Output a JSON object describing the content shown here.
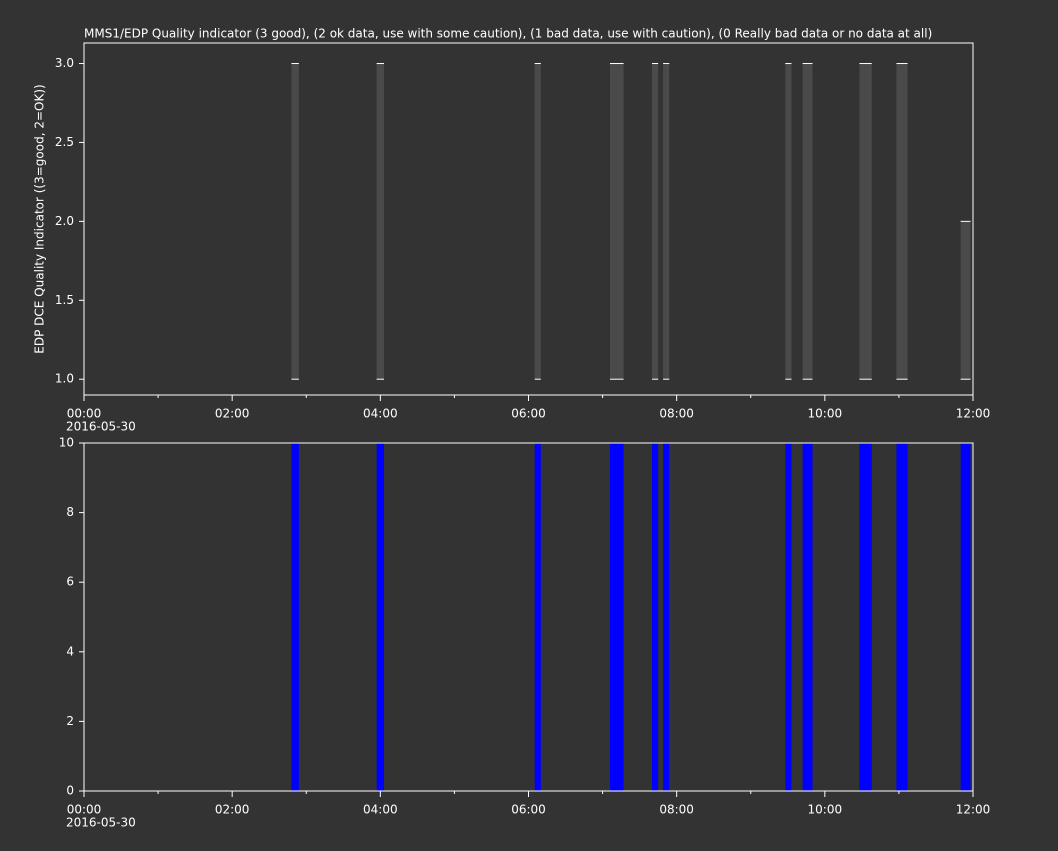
{
  "chart_data": [
    {
      "type": "range",
      "title": "MMS1/EDP  Quality indicator (3 good), (2 ok data, use with some caution), (1 bad data, use with caution), (0 Really bad data or no data at all)",
      "ylabel": "EDP DCE Quality Indicator ((3=good, 2=OK))",
      "x_date": "2016-05-30",
      "xlim": [
        "00:00",
        "12:00"
      ],
      "xticks": [
        "00:00",
        "02:00",
        "04:00",
        "06:00",
        "08:00",
        "10:00",
        "12:00"
      ],
      "ylim": [
        0.9,
        3.13
      ],
      "yticks": [
        {
          "value": 1,
          "label": "1.0"
        },
        {
          "value": 1.5,
          "label": "1.5"
        },
        {
          "value": 2,
          "label": "2.0"
        },
        {
          "value": 2.5,
          "label": "2.5"
        },
        {
          "value": 3,
          "label": "3.0"
        }
      ],
      "color": "#4a4a4a",
      "start": [
        "02:48",
        "03:57",
        "06:05",
        "07:06",
        "07:40",
        "07:49",
        "09:28",
        "09:42",
        "10:28",
        "10:58",
        "11:50"
      ],
      "end": [
        "02:54",
        "04:03",
        "06:10",
        "07:17",
        "07:45",
        "07:54",
        "09:33",
        "09:50",
        "10:38",
        "11:07",
        "11:58"
      ],
      "low": [
        1,
        1,
        1,
        1,
        1,
        1,
        1,
        1,
        1,
        1,
        1
      ],
      "high": [
        3,
        3,
        3,
        3,
        3,
        3,
        3,
        3,
        3,
        3,
        2
      ]
    },
    {
      "type": "bar",
      "x_date": "2016-05-30",
      "xlim": [
        "00:00",
        "12:00"
      ],
      "xticks": [
        "00:00",
        "02:00",
        "04:00",
        "06:00",
        "08:00",
        "10:00",
        "12:00"
      ],
      "ylim": [
        0,
        10
      ],
      "yticks": [
        0,
        2,
        4,
        6,
        8,
        10
      ],
      "color": "#0000ff",
      "start": [
        "02:48",
        "03:57",
        "06:05",
        "07:06",
        "07:40",
        "07:49",
        "09:28",
        "09:42",
        "10:28",
        "10:58",
        "11:50"
      ],
      "end": [
        "02:54",
        "04:03",
        "06:10",
        "07:17",
        "07:45",
        "07:54",
        "09:33",
        "09:50",
        "10:38",
        "11:07",
        "11:58"
      ],
      "values": [
        10,
        10,
        10,
        10,
        10,
        10,
        10,
        10,
        10,
        10,
        10
      ]
    }
  ]
}
